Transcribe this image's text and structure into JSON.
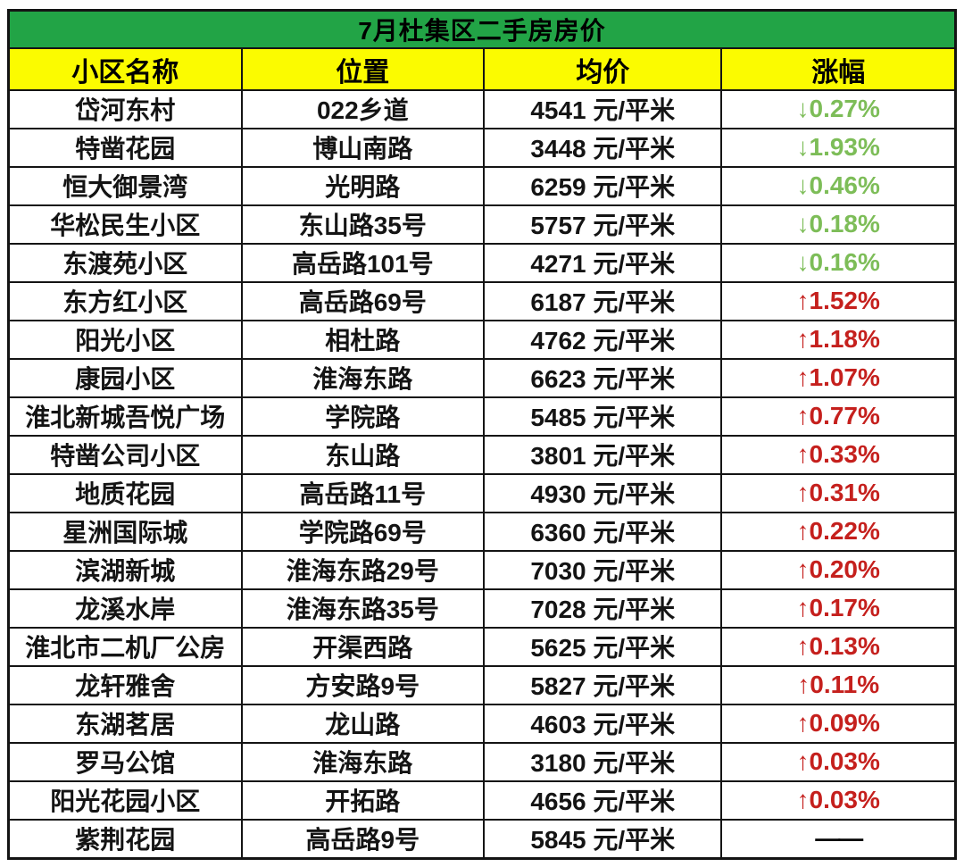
{
  "colors": {
    "title_bg": "#22a446",
    "header_bg": "#fbfb00",
    "up_red": "#c5201d",
    "down_green": "#7dbd58",
    "border": "#141414",
    "text": "#141414"
  },
  "chart_data": {
    "type": "table",
    "title": "7月杜集区二手房房价",
    "columns": [
      "小区名称",
      "位置",
      "均价",
      "涨幅"
    ],
    "unit": "元/平米",
    "rows": [
      [
        "岱河东村",
        "022乡道",
        "4541 元/平米",
        "↓0.27%"
      ],
      [
        "特凿花园",
        "博山南路",
        "3448 元/平米",
        "↓1.93%"
      ],
      [
        "恒大御景湾",
        "光明路",
        "6259 元/平米",
        "↓0.46%"
      ],
      [
        "华松民生小区",
        "东山路35号",
        "5757 元/平米",
        "↓0.18%"
      ],
      [
        "东渡苑小区",
        "高岳路101号",
        "4271 元/平米",
        "↓0.16%"
      ],
      [
        "东方红小区",
        "高岳路69号",
        "6187 元/平米",
        "↑1.52%"
      ],
      [
        "阳光小区",
        "相杜路",
        "4762 元/平米",
        "↑1.18%"
      ],
      [
        "康园小区",
        "淮海东路",
        "6623 元/平米",
        "↑1.07%"
      ],
      [
        "淮北新城吾悦广场",
        "学院路",
        "5485 元/平米",
        "↑0.77%"
      ],
      [
        "特凿公司小区",
        "东山路",
        "3801 元/平米",
        "↑0.33%"
      ],
      [
        "地质花园",
        "高岳路11号",
        "4930 元/平米",
        "↑0.31%"
      ],
      [
        "星洲国际城",
        "学院路69号",
        "6360 元/平米",
        "↑0.22%"
      ],
      [
        "滨湖新城",
        "淮海东路29号",
        "7030 元/平米",
        "↑0.20%"
      ],
      [
        "龙溪水岸",
        "淮海东路35号",
        "7028 元/平米",
        "↑0.17%"
      ],
      [
        "淮北市二机厂公房",
        "开渠西路",
        "5625 元/平米",
        "↑0.13%"
      ],
      [
        "龙轩雅舍",
        "方安路9号",
        "5827 元/平米",
        "↑0.11%"
      ],
      [
        "东湖茗居",
        "龙山路",
        "4603 元/平米",
        "↑0.09%"
      ],
      [
        "罗马公馆",
        "淮海东路",
        "3180 元/平米",
        "↑0.03%"
      ],
      [
        "阳光花园小区",
        "开拓路",
        "4656 元/平米",
        "↑0.03%"
      ],
      [
        "紫荆花园",
        "高岳路9号",
        "5845 元/平米",
        "——"
      ]
    ]
  }
}
